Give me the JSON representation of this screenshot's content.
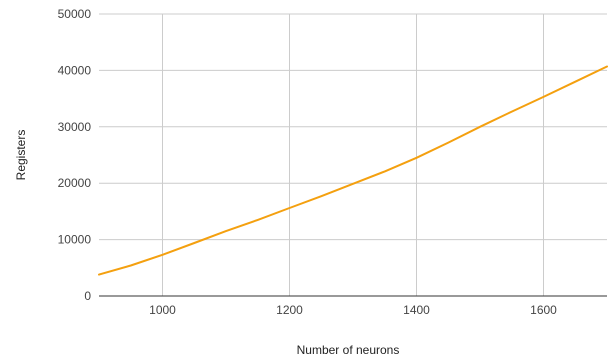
{
  "chart_data": {
    "type": "line",
    "title": "",
    "xlabel": "Number of neurons",
    "ylabel": "Registers",
    "xlim": [
      900,
      1700
    ],
    "ylim": [
      0,
      50000
    ],
    "x_ticks": [
      1000,
      1200,
      1400,
      1600
    ],
    "x_tick_labels": [
      "1000",
      "1200",
      "1400",
      "1600"
    ],
    "y_ticks": [
      0,
      10000,
      20000,
      30000,
      40000,
      50000
    ],
    "y_tick_labels": [
      "0",
      "10000",
      "20000",
      "30000",
      "40000",
      "50000"
    ],
    "grid": true,
    "series": [
      {
        "color": "#f4a00f",
        "x": [
          900,
          950,
          1000,
          1050,
          1100,
          1150,
          1200,
          1250,
          1300,
          1350,
          1400,
          1450,
          1500,
          1550,
          1600,
          1650,
          1700
        ],
        "y": [
          3800,
          5400,
          7300,
          9400,
          11500,
          13500,
          15600,
          17700,
          19900,
          22100,
          24500,
          27200,
          30000,
          32700,
          35300,
          38000,
          40700
        ]
      }
    ]
  }
}
